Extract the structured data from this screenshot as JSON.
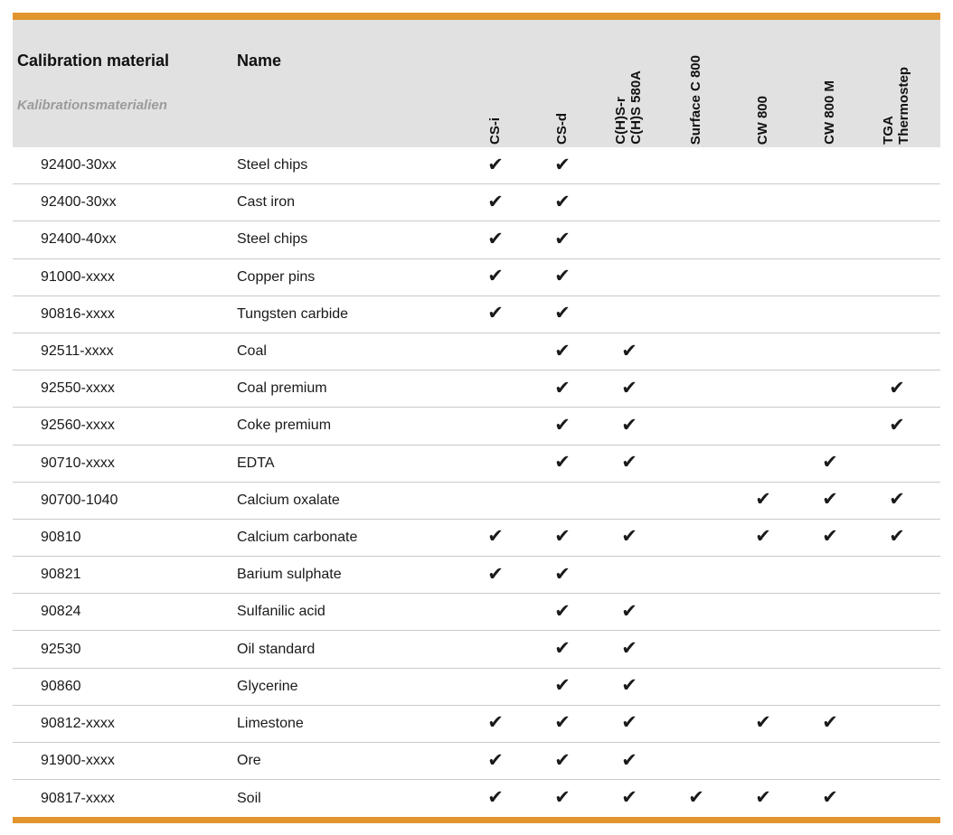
{
  "header": {
    "title_en": "Calibration material",
    "title_de": "Kalibrationsmaterialien",
    "name_label": "Name",
    "instruments": [
      "CS-i",
      "CS-d",
      "C(H)S-r\nC(H)S 580A",
      "Surface C 800",
      "CW 800",
      "CW 800 M",
      "TGA\nThermostep"
    ]
  },
  "check_glyph": "✔",
  "colors": {
    "accent_orange": "#E2952E",
    "header_bg": "#E1E1E1",
    "row_line": "#CACACA",
    "text_color": "#1A1A1A",
    "subtitle_gray": "#9B9B9B"
  },
  "rows": [
    {
      "code": "92400-30xx",
      "name": "Steel chips",
      "checks": [
        1,
        1,
        0,
        0,
        0,
        0,
        0
      ]
    },
    {
      "code": "92400-30xx",
      "name": "Cast iron",
      "checks": [
        1,
        1,
        0,
        0,
        0,
        0,
        0
      ]
    },
    {
      "code": "92400-40xx",
      "name": "Steel chips",
      "checks": [
        1,
        1,
        0,
        0,
        0,
        0,
        0
      ]
    },
    {
      "code": "91000-xxxx",
      "name": "Copper pins",
      "checks": [
        1,
        1,
        0,
        0,
        0,
        0,
        0
      ]
    },
    {
      "code": "90816-xxxx",
      "name": "Tungsten carbide",
      "checks": [
        1,
        1,
        0,
        0,
        0,
        0,
        0
      ]
    },
    {
      "code": "92511-xxxx",
      "name": "Coal",
      "checks": [
        0,
        1,
        1,
        0,
        0,
        0,
        0
      ]
    },
    {
      "code": "92550-xxxx",
      "name": "Coal premium",
      "checks": [
        0,
        1,
        1,
        0,
        0,
        0,
        1
      ]
    },
    {
      "code": "92560-xxxx",
      "name": "Coke premium",
      "checks": [
        0,
        1,
        1,
        0,
        0,
        0,
        1
      ]
    },
    {
      "code": "90710-xxxx",
      "name": "EDTA",
      "checks": [
        0,
        1,
        1,
        0,
        0,
        1,
        0
      ]
    },
    {
      "code": "90700-1040",
      "name": "Calcium oxalate",
      "checks": [
        0,
        0,
        0,
        0,
        1,
        1,
        1
      ]
    },
    {
      "code": "90810",
      "name": "Calcium carbonate",
      "checks": [
        1,
        1,
        1,
        0,
        1,
        1,
        1
      ]
    },
    {
      "code": "90821",
      "name": "Barium sulphate",
      "checks": [
        1,
        1,
        0,
        0,
        0,
        0,
        0
      ]
    },
    {
      "code": "90824",
      "name": "Sulfanilic acid",
      "checks": [
        0,
        1,
        1,
        0,
        0,
        0,
        0
      ]
    },
    {
      "code": "92530",
      "name": "Oil standard",
      "checks": [
        0,
        1,
        1,
        0,
        0,
        0,
        0
      ]
    },
    {
      "code": "90860",
      "name": "Glycerine",
      "checks": [
        0,
        1,
        1,
        0,
        0,
        0,
        0
      ]
    },
    {
      "code": "90812-xxxx",
      "name": "Limestone",
      "checks": [
        1,
        1,
        1,
        0,
        1,
        1,
        0
      ]
    },
    {
      "code": "91900-xxxx",
      "name": "Ore",
      "checks": [
        1,
        1,
        1,
        0,
        0,
        0,
        0
      ]
    },
    {
      "code": "90817-xxxx",
      "name": "Soil",
      "checks": [
        1,
        1,
        1,
        1,
        1,
        1,
        0
      ]
    }
  ]
}
